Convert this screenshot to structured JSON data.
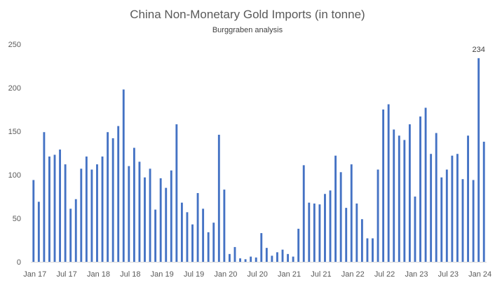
{
  "chart_data": {
    "type": "bar",
    "title": "China Non-Monetary Gold Imports (in tonne)",
    "subtitle": "Burggraben analysis",
    "xlabel": "",
    "ylabel": "",
    "ylim": [
      0,
      250
    ],
    "yticks": [
      0,
      50,
      100,
      150,
      200,
      250
    ],
    "grid": false,
    "legend": "none",
    "bar_color": "#4472C4",
    "categories": [
      "Jan 17",
      "Feb 17",
      "Mar 17",
      "Apr 17",
      "May 17",
      "Jun 17",
      "Jul 17",
      "Aug 17",
      "Sep 17",
      "Oct 17",
      "Nov 17",
      "Dec 17",
      "Jan 18",
      "Feb 18",
      "Mar 18",
      "Apr 18",
      "May 18",
      "Jun 18",
      "Jul 18",
      "Aug 18",
      "Sep 18",
      "Oct 18",
      "Nov 18",
      "Dec 18",
      "Jan 19",
      "Feb 19",
      "Mar 19",
      "Apr 19",
      "May 19",
      "Jun 19",
      "Jul 19",
      "Aug 19",
      "Sep 19",
      "Oct 19",
      "Nov 19",
      "Dec 19",
      "Jan 20",
      "Feb 20",
      "Mar 20",
      "Apr 20",
      "May 20",
      "Jun 20",
      "Jul 20",
      "Aug 20",
      "Sep 20",
      "Oct 20",
      "Nov 20",
      "Dec 20",
      "Jan 21",
      "Feb 21",
      "Mar 21",
      "Apr 21",
      "May 21",
      "Jun 21",
      "Jul 21",
      "Aug 21",
      "Sep 21",
      "Oct 21",
      "Nov 21",
      "Dec 21",
      "Jan 22",
      "Feb 22",
      "Mar 22",
      "Apr 22",
      "May 22",
      "Jun 22",
      "Jul 22",
      "Aug 22",
      "Sep 22",
      "Oct 22",
      "Nov 22",
      "Dec 22",
      "Jan 23",
      "Feb 23",
      "Mar 23",
      "Apr 23",
      "May 23",
      "Jun 23",
      "Jul 23",
      "Aug 23",
      "Sep 23",
      "Oct 23",
      "Nov 23",
      "Dec 23",
      "Jan 24",
      "Feb 24"
    ],
    "values": [
      94,
      69,
      149,
      121,
      123,
      129,
      112,
      61,
      72,
      107,
      121,
      106,
      112,
      121,
      149,
      142,
      156,
      198,
      110,
      131,
      115,
      97,
      107,
      60,
      96,
      85,
      105,
      158,
      68,
      57,
      43,
      79,
      61,
      34,
      45,
      146,
      83,
      9,
      17,
      4,
      3,
      6,
      5,
      33,
      16,
      7,
      11,
      14,
      9,
      6,
      38,
      111,
      68,
      67,
      66,
      78,
      82,
      122,
      103,
      62,
      112,
      67,
      49,
      27,
      27,
      106,
      175,
      181,
      152,
      145,
      140,
      158,
      75,
      167,
      177,
      124,
      148,
      97,
      106,
      122,
      124,
      95,
      145,
      94,
      234,
      138
    ],
    "xtick_labels": [
      "Jan 17",
      "Jul 17",
      "Jan 18",
      "Jul 18",
      "Jan 19",
      "Jul 19",
      "Jan 20",
      "Jul 20",
      "Jan 21",
      "Jul 21",
      "Jan 22",
      "Jul 22",
      "Jan 23",
      "Jul 23",
      "Jan 24"
    ],
    "annotations": [
      {
        "category": "Jan 24",
        "text": "234"
      }
    ]
  }
}
